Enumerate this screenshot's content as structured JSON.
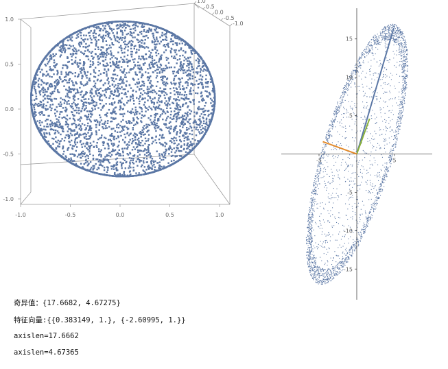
{
  "chart_data": [
    {
      "type": "scatter",
      "panel": "3d-sphere",
      "title": "",
      "xlabel": "",
      "ylabel": "",
      "zlabel": "",
      "xlim": [
        -1.0,
        1.0
      ],
      "ylim": [
        -1.0,
        1.0
      ],
      "zlim": [
        -1.0,
        1.0
      ],
      "x_ticks": [
        "-1.0",
        "-0.5",
        "0.0",
        "0.5",
        "1.0"
      ],
      "z_ticks": [
        "1.0",
        "0.5",
        "0.0",
        "-0.5",
        "-1.0"
      ],
      "y_ticks": [
        "1.0",
        "0.5",
        "0.0",
        "-0.5",
        "-1.0"
      ],
      "point_count": 5000,
      "shape": "unit-ball point cloud",
      "color": "#5b77a5"
    },
    {
      "type": "scatter",
      "panel": "2d-ellipse",
      "title": "",
      "xlabel": "",
      "ylabel": "",
      "xlim": [
        -10,
        10
      ],
      "ylim": [
        -19,
        19
      ],
      "x_ticks": [
        "-5",
        "5"
      ],
      "y_ticks": [
        "15",
        "10",
        "5",
        "-5",
        "-10",
        "-15"
      ],
      "point_count": 3000,
      "shape": "ellipse point cloud",
      "color": "#5b77a5",
      "semi_axes": [
        17.6682,
        4.67275
      ],
      "series": [
        {
          "name": "",
          "x": [
            0,
            4.9
          ],
          "y": [
            0,
            16.4
          ],
          "color": "#5b77a5"
        },
        {
          "name": "",
          "x": [
            0,
            1.7
          ],
          "y": [
            0,
            4.6
          ],
          "color": "#8bb23a"
        },
        {
          "name": "",
          "x": [
            0,
            -4.5
          ],
          "y": [
            0,
            1.6
          ],
          "color": "#e38b2c"
        }
      ]
    }
  ],
  "output": {
    "singular_values": "奇异值：{17.6682, 4.67275}",
    "eigenvectors": "特征向量:{{0.383149, 1.}, {-2.60995, 1.}}",
    "axislen_1": "axislen=17.6662",
    "axislen_2": "axislen=4.67365"
  }
}
